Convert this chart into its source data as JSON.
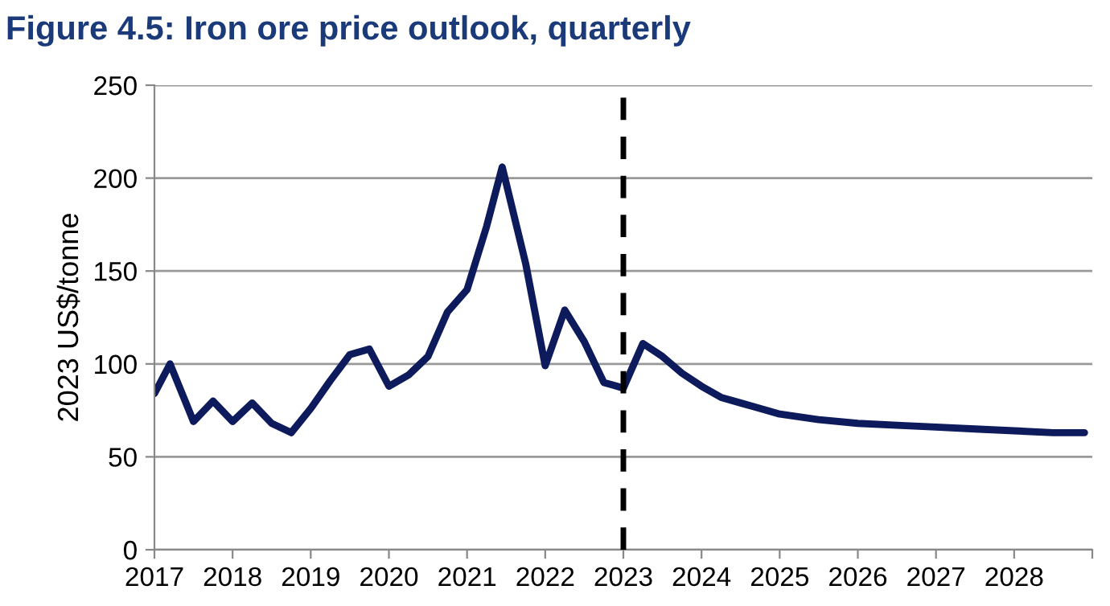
{
  "chart_data": {
    "type": "line",
    "title": "Figure 4.5: Iron ore price outlook, quarterly",
    "ylabel": "2023 US$/tonne",
    "x": [
      2017.0,
      2017.2,
      2017.5,
      2017.75,
      2018.0,
      2018.25,
      2018.5,
      2018.75,
      2019.0,
      2019.25,
      2019.5,
      2019.75,
      2020.0,
      2020.25,
      2020.5,
      2020.75,
      2021.0,
      2021.25,
      2021.45,
      2021.75,
      2022.0,
      2022.25,
      2022.5,
      2022.75,
      2023.0,
      2023.25,
      2023.5,
      2023.75,
      2024.0,
      2024.25,
      2024.5,
      2024.75,
      2025.0,
      2025.5,
      2026.0,
      2026.5,
      2027.0,
      2027.5,
      2028.0,
      2028.5,
      2028.9
    ],
    "series": [
      {
        "color": "#0d1a5c",
        "values": [
          84,
          100,
          69,
          80,
          69,
          79,
          68,
          63,
          76,
          91,
          105,
          108,
          88,
          94,
          104,
          128,
          140,
          174,
          206,
          154,
          99,
          129,
          112,
          90,
          87,
          111,
          104,
          95,
          88,
          82,
          79,
          76,
          73,
          70,
          68,
          67,
          66,
          65,
          64,
          63,
          63
        ]
      }
    ],
    "xlim": [
      2017,
      2029
    ],
    "xticks": [
      2017,
      2018,
      2019,
      2020,
      2021,
      2022,
      2023,
      2024,
      2025,
      2026,
      2027,
      2028,
      {
        "value": 2029,
        "label": null
      }
    ],
    "ylim": [
      0,
      250
    ],
    "yticks": [
      0,
      50,
      100,
      150,
      200,
      250
    ],
    "grid": "y",
    "line_style": "solid",
    "ref_lines": [
      {
        "axis": "x",
        "value": 2023,
        "color": "#000000",
        "line_style": "dashed"
      }
    ]
  }
}
